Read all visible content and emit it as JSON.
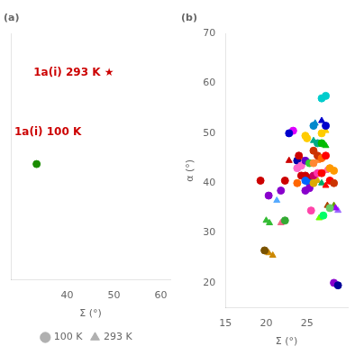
{
  "chart_data": [
    {
      "type": "scatter",
      "title": "(a)",
      "xlabel": "Σ (°)",
      "xlim": [
        28,
        62
      ],
      "xticks": [
        40,
        50,
        60
      ],
      "ylim": [
        0,
        1
      ],
      "tick_labels": "x",
      "grid": false,
      "legend": "bottom",
      "series": [
        {
          "color": "#1a8c00",
          "marker": "circle",
          "x": [
            33.5
          ],
          "values": [
            0.47
          ]
        },
        {
          "name": "100 K",
          "color": "#b0b0b0",
          "marker": "circle",
          "x": [],
          "values": []
        },
        {
          "name": "293 K",
          "color": "#b0b0b0",
          "marker": "triangle",
          "x": [],
          "values": []
        }
      ],
      "annotations": [
        {
          "text": "1a(i) 293 K ★",
          "color": "#cc0000"
        },
        {
          "text": "1a(i) 100 K",
          "color": "#cc0000"
        }
      ]
    },
    {
      "type": "scatter",
      "title": "(b)",
      "xlabel": "Σ (°)",
      "ylabel": "α (°)",
      "xlim": [
        15,
        30
      ],
      "xticks": [
        15,
        20,
        25
      ],
      "ylim": [
        15,
        70
      ],
      "yticks": [
        20,
        30,
        40,
        50,
        60,
        70
      ],
      "grid": false,
      "series": [
        {
          "marker": "circle",
          "x": [
            19.3,
            20.3,
            19.8,
            22.3,
            21.8,
            22.3,
            23.3,
            22.8,
            23.8,
            24.0,
            23.8,
            24.3,
            23.8,
            24.3,
            24.8,
            25.0,
            24.8,
            25.3,
            24.8,
            25.3,
            24.8,
            25.3,
            24.8,
            25.3,
            25.8,
            26.3,
            25.8,
            26.3,
            25.8,
            25.8,
            26.3,
            25.8,
            26.8,
            27.3,
            27.3,
            26.8,
            26.8,
            26.8,
            27.3,
            26.8,
            27.8,
            28.3,
            27.8,
            28.3,
            27.8,
            28.3,
            28.8,
            25.5,
            27.0
          ],
          "values": [
            40.5,
            37.5,
            26.5,
            40.5,
            38.5,
            32.5,
            50.5,
            50.0,
            44.5,
            45.5,
            40.0,
            41.5,
            43.0,
            43.5,
            49.5,
            49.0,
            44.5,
            44.0,
            41.5,
            41.0,
            40.5,
            40.0,
            38.5,
            39.0,
            51.5,
            48.0,
            46.5,
            45.5,
            44.0,
            41.5,
            42.0,
            40.0,
            57.0,
            57.5,
            51.5,
            50.0,
            48.0,
            45.0,
            45.5,
            42.0,
            43.0,
            42.5,
            40.5,
            40.0,
            35.0,
            20.0,
            19.5,
            34.5,
            33.5
          ],
          "colors": [
            "#cc0000",
            "#8800cc",
            "#7a5200",
            "#cc0000",
            "#8800cc",
            "#33aa33",
            "#dd00ff",
            "#0000cc",
            "#0000aa",
            "#cc0000",
            "#ff6600",
            "#cc0000",
            "#ff66cc",
            "#ff66cc",
            "#ffcc00",
            "#ffcc00",
            "#6600cc",
            "#33cc33",
            "#cc0000",
            "#cc0000",
            "#0066ff",
            "#0066ff",
            "#8800cc",
            "#8800cc",
            "#0088cc",
            "#00aa88",
            "#cc3300",
            "#cc3300",
            "#ff8833",
            "#cc0066",
            "#ff33aa",
            "#ddaa00",
            "#00cccc",
            "#00cccc",
            "#0000cc",
            "#ffcc00",
            "#00bb00",
            "#ff6600",
            "#ff0000",
            "#ff0000",
            "#ff9900",
            "#ff9900",
            "#ff0000",
            "#cc3300",
            "#66cc66",
            "#8800cc",
            "#000099",
            "#ff44aa",
            "#00ff66"
          ]
        },
        {
          "marker": "triangle",
          "x": [
            20.3,
            20.8,
            20.0,
            20.4,
            21.3,
            22.8,
            21.8,
            24.3,
            26.0,
            25.8,
            26.3,
            26.3,
            26.8,
            27.3,
            27.3,
            27.3,
            26.8,
            27.3,
            28.3,
            28.8,
            27.5,
            26.5,
            28.5
          ],
          "values": [
            26.0,
            25.5,
            32.5,
            32.0,
            36.5,
            44.5,
            32.0,
            45.0,
            52.0,
            48.5,
            44.5,
            40.5,
            52.5,
            50.5,
            47.5,
            42.5,
            40.0,
            39.5,
            35.5,
            34.5,
            35.5,
            33.0,
            35.0
          ],
          "colors": [
            "#cc8800",
            "#cc8800",
            "#33bb33",
            "#33bb33",
            "#55aaff",
            "#cc0000",
            "#ee6688",
            "#ff6600",
            "#0088cc",
            "#00aa88",
            "#ff8833",
            "#ddaa00",
            "#0000cc",
            "#ffcc00",
            "#00bb00",
            "#ff6699",
            "#00aa66",
            "#ff0000",
            "#669900",
            "#9966ff",
            "#aa4400",
            "#66ff00",
            "#9900ff"
          ]
        }
      ]
    }
  ]
}
